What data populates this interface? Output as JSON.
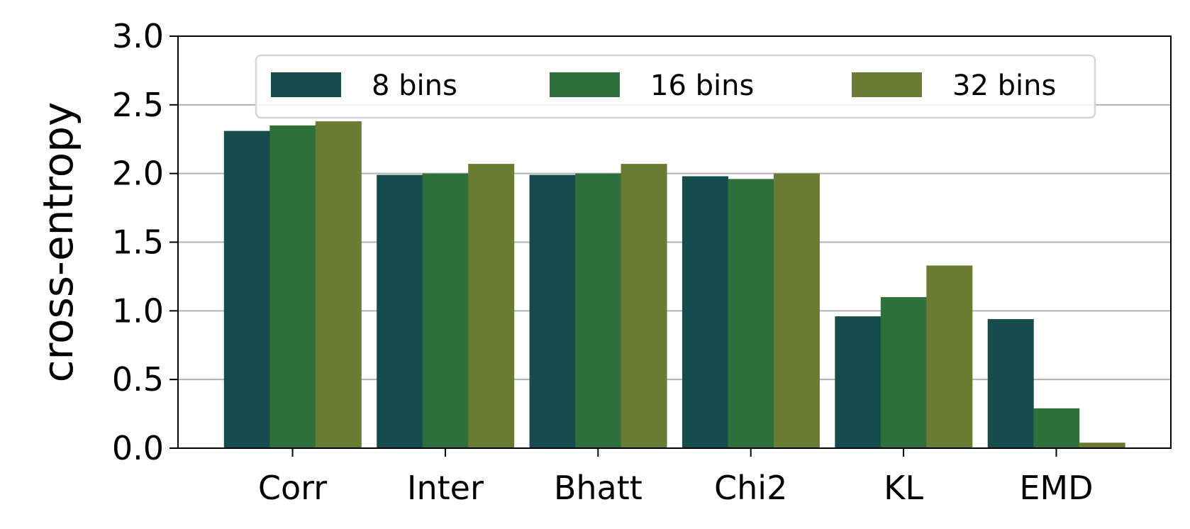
{
  "chart_data": {
    "type": "bar",
    "ylabel": "cross-entropy",
    "xlabel": "",
    "categories": [
      "Corr",
      "Inter",
      "Bhatt",
      "Chi2",
      "KL",
      "EMD"
    ],
    "series": [
      {
        "name": "8 bins",
        "color": "#174c4f",
        "values": [
          2.31,
          1.99,
          1.99,
          1.98,
          0.96,
          0.94
        ]
      },
      {
        "name": "16 bins",
        "color": "#2e6f3b",
        "values": [
          2.35,
          2.0,
          2.0,
          1.96,
          1.1,
          0.29
        ]
      },
      {
        "name": "32 bins",
        "color": "#6a7b33",
        "values": [
          2.38,
          2.07,
          2.07,
          2.0,
          1.33,
          0.04
        ]
      }
    ],
    "ylim": [
      0,
      3.0
    ],
    "yticks": [
      "0.0",
      "0.5",
      "1.0",
      "1.5",
      "2.0",
      "2.5",
      "3.0"
    ],
    "grid": "y",
    "legend": "top-center"
  }
}
